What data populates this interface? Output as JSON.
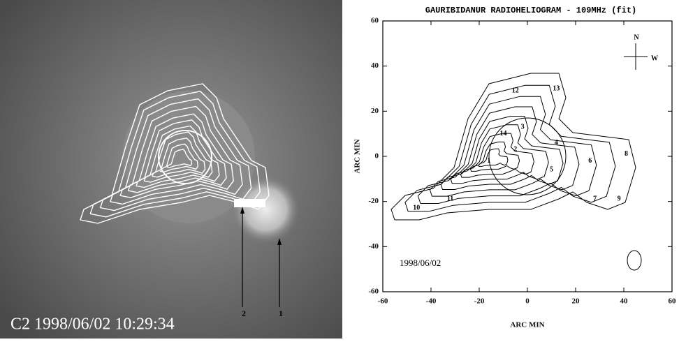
{
  "left_image": {
    "caption": "C2 1998/06/02 10:29:34",
    "arrows": [
      "2",
      "1"
    ]
  },
  "chart_data": {
    "type": "contour",
    "title": "GAURIBIDANUR RADIOHELIOGRAM - 109MHz (fit)",
    "x_label": "ARC MIN",
    "y_label": "ARC MIN",
    "xlim": [
      -60,
      60
    ],
    "ylim": [
      -60,
      60
    ],
    "xticks": [
      -60,
      -40,
      -20,
      0,
      20,
      40,
      60
    ],
    "yticks": [
      -60,
      -40,
      -20,
      0,
      20,
      40,
      60
    ],
    "annotation": "1998/06/02",
    "compass": [
      "N",
      "W"
    ],
    "sources": [
      {
        "label": "1",
        "x": -16,
        "y": -2
      },
      {
        "label": "2",
        "x": -5,
        "y": 3
      },
      {
        "label": "3",
        "x": -2,
        "y": 13
      },
      {
        "label": "4",
        "x": 12,
        "y": 6
      },
      {
        "label": "5",
        "x": 10,
        "y": -6
      },
      {
        "label": "6",
        "x": 26,
        "y": -2
      },
      {
        "label": "7",
        "x": 28,
        "y": -19
      },
      {
        "label": "8",
        "x": 41,
        "y": 1
      },
      {
        "label": "9",
        "x": 38,
        "y": -19
      },
      {
        "label": "10",
        "x": -46,
        "y": -23
      },
      {
        "label": "11",
        "x": -32,
        "y": -19
      },
      {
        "label": "12",
        "x": -5,
        "y": 29
      },
      {
        "label": "13",
        "x": 12,
        "y": 30
      },
      {
        "label": "14",
        "x": -10,
        "y": 10
      }
    ]
  }
}
